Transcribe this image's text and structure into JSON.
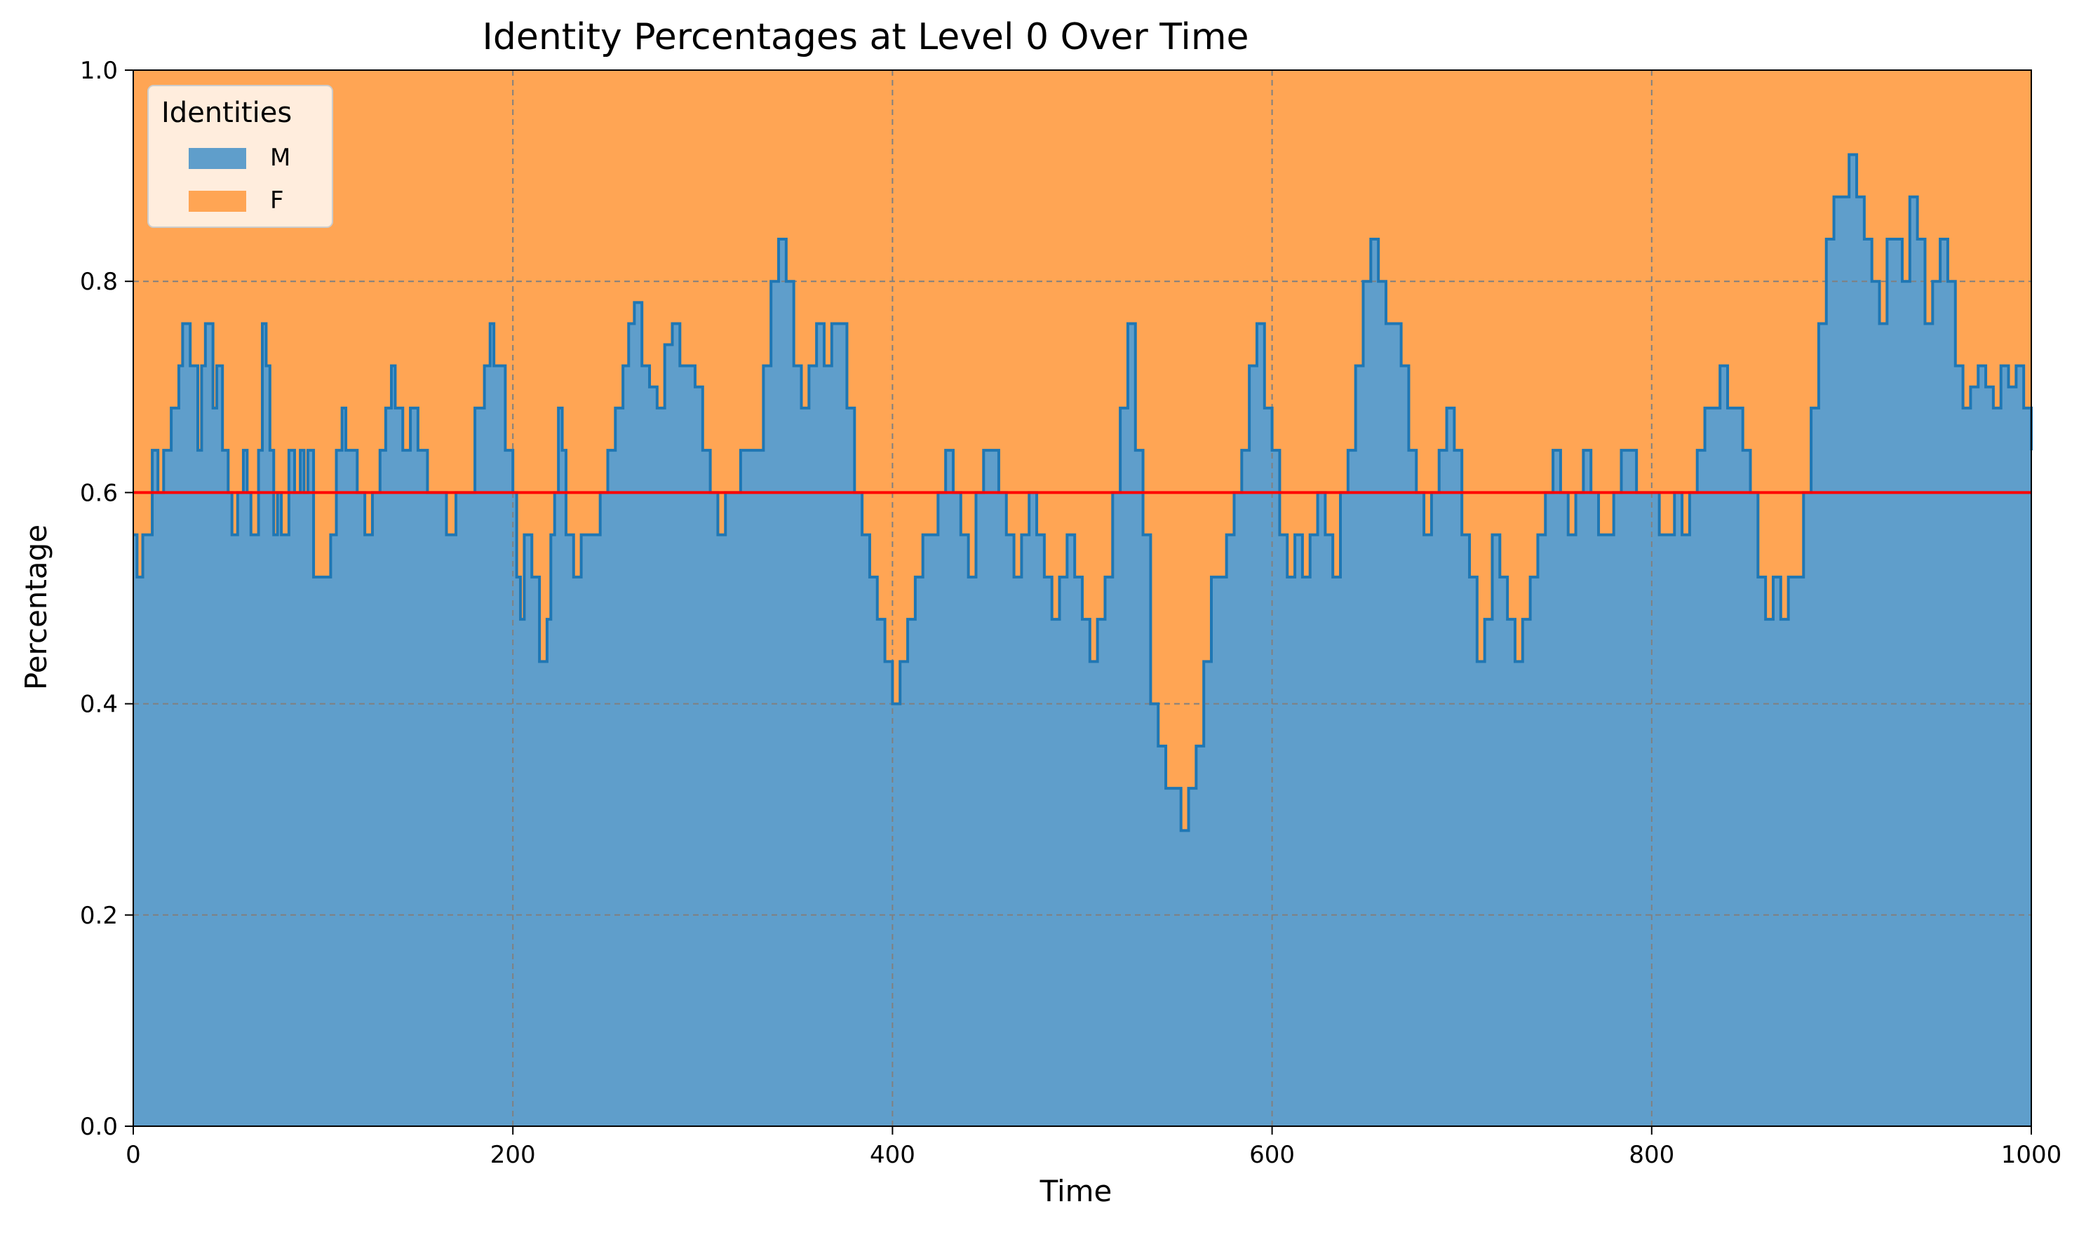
{
  "chart_data": {
    "type": "area",
    "title": "Identity Percentages at Level 0 Over Time",
    "xlabel": "Time",
    "ylabel": "Percentage",
    "xlim": [
      0,
      1000
    ],
    "ylim": [
      0,
      1
    ],
    "x_ticks": [
      "0",
      "200",
      "400",
      "600",
      "800",
      "1000"
    ],
    "y_ticks": [
      "0.0",
      "0.2",
      "0.4",
      "0.6",
      "0.8",
      "1.0"
    ],
    "x_tick_values": [
      0,
      200,
      400,
      600,
      800,
      1000
    ],
    "y_tick_values": [
      0,
      0.2,
      0.4,
      0.6,
      0.8,
      1.0
    ],
    "grid": true,
    "legend": {
      "title": "Identities",
      "placement": "top-left",
      "entries": [
        "M",
        "F"
      ]
    },
    "reference_line": {
      "y": 0.6,
      "color": "#ff0000"
    },
    "stacked": true,
    "series": [
      {
        "name": "M",
        "color": "#5f9ecb",
        "line_color": "#1f77b4",
        "points": [
          [
            0,
            0.56
          ],
          [
            2,
            0.52
          ],
          [
            5,
            0.56
          ],
          [
            8,
            0.56
          ],
          [
            10,
            0.64
          ],
          [
            13,
            0.6
          ],
          [
            16,
            0.64
          ],
          [
            20,
            0.68
          ],
          [
            24,
            0.72
          ],
          [
            26,
            0.76
          ],
          [
            30,
            0.72
          ],
          [
            34,
            0.64
          ],
          [
            36,
            0.72
          ],
          [
            38,
            0.76
          ],
          [
            42,
            0.68
          ],
          [
            44,
            0.72
          ],
          [
            47,
            0.64
          ],
          [
            50,
            0.6
          ],
          [
            52,
            0.56
          ],
          [
            55,
            0.6
          ],
          [
            58,
            0.64
          ],
          [
            60,
            0.6
          ],
          [
            62,
            0.56
          ],
          [
            64,
            0.56
          ],
          [
            66,
            0.64
          ],
          [
            68,
            0.76
          ],
          [
            70,
            0.72
          ],
          [
            72,
            0.64
          ],
          [
            74,
            0.56
          ],
          [
            76,
            0.6
          ],
          [
            78,
            0.56
          ],
          [
            82,
            0.64
          ],
          [
            85,
            0.6
          ],
          [
            88,
            0.64
          ],
          [
            90,
            0.6
          ],
          [
            92,
            0.64
          ],
          [
            95,
            0.52
          ],
          [
            100,
            0.52
          ],
          [
            104,
            0.56
          ],
          [
            107,
            0.64
          ],
          [
            110,
            0.68
          ],
          [
            112,
            0.64
          ],
          [
            115,
            0.64
          ],
          [
            118,
            0.6
          ],
          [
            122,
            0.56
          ],
          [
            126,
            0.6
          ],
          [
            130,
            0.64
          ],
          [
            133,
            0.68
          ],
          [
            136,
            0.72
          ],
          [
            138,
            0.68
          ],
          [
            142,
            0.64
          ],
          [
            146,
            0.68
          ],
          [
            150,
            0.64
          ],
          [
            155,
            0.6
          ],
          [
            160,
            0.6
          ],
          [
            165,
            0.56
          ],
          [
            170,
            0.6
          ],
          [
            174,
            0.6
          ],
          [
            180,
            0.68
          ],
          [
            185,
            0.72
          ],
          [
            188,
            0.76
          ],
          [
            190,
            0.72
          ],
          [
            196,
            0.64
          ],
          [
            200,
            0.6
          ],
          [
            202,
            0.52
          ],
          [
            204,
            0.48
          ],
          [
            206,
            0.56
          ],
          [
            210,
            0.52
          ],
          [
            214,
            0.44
          ],
          [
            218,
            0.48
          ],
          [
            220,
            0.56
          ],
          [
            222,
            0.6
          ],
          [
            224,
            0.68
          ],
          [
            226,
            0.64
          ],
          [
            228,
            0.56
          ],
          [
            232,
            0.52
          ],
          [
            236,
            0.56
          ],
          [
            242,
            0.56
          ],
          [
            246,
            0.6
          ],
          [
            250,
            0.64
          ],
          [
            254,
            0.68
          ],
          [
            258,
            0.72
          ],
          [
            261,
            0.76
          ],
          [
            264,
            0.78
          ],
          [
            268,
            0.72
          ],
          [
            272,
            0.7
          ],
          [
            276,
            0.68
          ],
          [
            280,
            0.74
          ],
          [
            284,
            0.76
          ],
          [
            288,
            0.72
          ],
          [
            292,
            0.72
          ],
          [
            296,
            0.7
          ],
          [
            300,
            0.64
          ],
          [
            304,
            0.6
          ],
          [
            308,
            0.56
          ],
          [
            312,
            0.6
          ],
          [
            316,
            0.6
          ],
          [
            320,
            0.64
          ],
          [
            324,
            0.64
          ],
          [
            328,
            0.64
          ],
          [
            332,
            0.72
          ],
          [
            336,
            0.8
          ],
          [
            340,
            0.84
          ],
          [
            344,
            0.8
          ],
          [
            348,
            0.72
          ],
          [
            352,
            0.68
          ],
          [
            356,
            0.72
          ],
          [
            360,
            0.76
          ],
          [
            364,
            0.72
          ],
          [
            368,
            0.76
          ],
          [
            372,
            0.76
          ],
          [
            376,
            0.68
          ],
          [
            380,
            0.6
          ],
          [
            384,
            0.56
          ],
          [
            388,
            0.52
          ],
          [
            392,
            0.48
          ],
          [
            396,
            0.44
          ],
          [
            400,
            0.4
          ],
          [
            404,
            0.44
          ],
          [
            408,
            0.48
          ],
          [
            412,
            0.52
          ],
          [
            416,
            0.56
          ],
          [
            420,
            0.56
          ],
          [
            424,
            0.6
          ],
          [
            428,
            0.64
          ],
          [
            432,
            0.6
          ],
          [
            436,
            0.56
          ],
          [
            440,
            0.52
          ],
          [
            444,
            0.6
          ],
          [
            448,
            0.64
          ],
          [
            452,
            0.64
          ],
          [
            456,
            0.6
          ],
          [
            460,
            0.56
          ],
          [
            464,
            0.52
          ],
          [
            468,
            0.56
          ],
          [
            472,
            0.6
          ],
          [
            476,
            0.56
          ],
          [
            480,
            0.52
          ],
          [
            484,
            0.48
          ],
          [
            488,
            0.52
          ],
          [
            492,
            0.56
          ],
          [
            496,
            0.52
          ],
          [
            500,
            0.48
          ],
          [
            504,
            0.44
          ],
          [
            508,
            0.48
          ],
          [
            512,
            0.52
          ],
          [
            516,
            0.6
          ],
          [
            520,
            0.68
          ],
          [
            524,
            0.76
          ],
          [
            528,
            0.64
          ],
          [
            532,
            0.56
          ],
          [
            536,
            0.4
          ],
          [
            540,
            0.36
          ],
          [
            544,
            0.32
          ],
          [
            548,
            0.32
          ],
          [
            552,
            0.28
          ],
          [
            556,
            0.32
          ],
          [
            560,
            0.36
          ],
          [
            564,
            0.44
          ],
          [
            568,
            0.52
          ],
          [
            572,
            0.52
          ],
          [
            576,
            0.56
          ],
          [
            580,
            0.6
          ],
          [
            584,
            0.64
          ],
          [
            588,
            0.72
          ],
          [
            592,
            0.76
          ],
          [
            596,
            0.68
          ],
          [
            600,
            0.64
          ],
          [
            604,
            0.56
          ],
          [
            608,
            0.52
          ],
          [
            612,
            0.56
          ],
          [
            616,
            0.52
          ],
          [
            620,
            0.56
          ],
          [
            624,
            0.6
          ],
          [
            628,
            0.56
          ],
          [
            632,
            0.52
          ],
          [
            636,
            0.6
          ],
          [
            640,
            0.64
          ],
          [
            644,
            0.72
          ],
          [
            648,
            0.8
          ],
          [
            652,
            0.84
          ],
          [
            656,
            0.8
          ],
          [
            660,
            0.76
          ],
          [
            664,
            0.76
          ],
          [
            668,
            0.72
          ],
          [
            672,
            0.64
          ],
          [
            676,
            0.6
          ],
          [
            680,
            0.56
          ],
          [
            684,
            0.6
          ],
          [
            688,
            0.64
          ],
          [
            692,
            0.68
          ],
          [
            696,
            0.64
          ],
          [
            700,
            0.56
          ],
          [
            704,
            0.52
          ],
          [
            708,
            0.44
          ],
          [
            712,
            0.48
          ],
          [
            716,
            0.56
          ],
          [
            720,
            0.52
          ],
          [
            724,
            0.48
          ],
          [
            728,
            0.44
          ],
          [
            732,
            0.48
          ],
          [
            736,
            0.52
          ],
          [
            740,
            0.56
          ],
          [
            744,
            0.6
          ],
          [
            748,
            0.64
          ],
          [
            752,
            0.6
          ],
          [
            756,
            0.56
          ],
          [
            760,
            0.6
          ],
          [
            764,
            0.64
          ],
          [
            768,
            0.6
          ],
          [
            772,
            0.56
          ],
          [
            776,
            0.56
          ],
          [
            780,
            0.6
          ],
          [
            784,
            0.64
          ],
          [
            788,
            0.64
          ],
          [
            792,
            0.6
          ],
          [
            796,
            0.6
          ],
          [
            800,
            0.6
          ],
          [
            804,
            0.56
          ],
          [
            808,
            0.56
          ],
          [
            812,
            0.6
          ],
          [
            816,
            0.56
          ],
          [
            820,
            0.6
          ],
          [
            824,
            0.64
          ],
          [
            828,
            0.68
          ],
          [
            832,
            0.68
          ],
          [
            836,
            0.72
          ],
          [
            840,
            0.68
          ],
          [
            844,
            0.68
          ],
          [
            848,
            0.64
          ],
          [
            852,
            0.6
          ],
          [
            856,
            0.52
          ],
          [
            860,
            0.48
          ],
          [
            864,
            0.52
          ],
          [
            868,
            0.48
          ],
          [
            872,
            0.52
          ],
          [
            876,
            0.52
          ],
          [
            880,
            0.6
          ],
          [
            884,
            0.68
          ],
          [
            888,
            0.76
          ],
          [
            892,
            0.84
          ],
          [
            896,
            0.88
          ],
          [
            900,
            0.88
          ],
          [
            904,
            0.92
          ],
          [
            908,
            0.88
          ],
          [
            912,
            0.84
          ],
          [
            916,
            0.8
          ],
          [
            920,
            0.76
          ],
          [
            924,
            0.84
          ],
          [
            928,
            0.84
          ],
          [
            932,
            0.8
          ],
          [
            936,
            0.88
          ],
          [
            940,
            0.84
          ],
          [
            944,
            0.76
          ],
          [
            948,
            0.8
          ],
          [
            952,
            0.84
          ],
          [
            956,
            0.8
          ],
          [
            960,
            0.72
          ],
          [
            964,
            0.68
          ],
          [
            968,
            0.7
          ],
          [
            972,
            0.72
          ],
          [
            976,
            0.7
          ],
          [
            980,
            0.68
          ],
          [
            984,
            0.72
          ],
          [
            988,
            0.7
          ],
          [
            992,
            0.72
          ],
          [
            996,
            0.68
          ],
          [
            1000,
            0.64
          ]
        ]
      },
      {
        "name": "F",
        "color": "#ffa554",
        "note_complement": true
      }
    ]
  }
}
